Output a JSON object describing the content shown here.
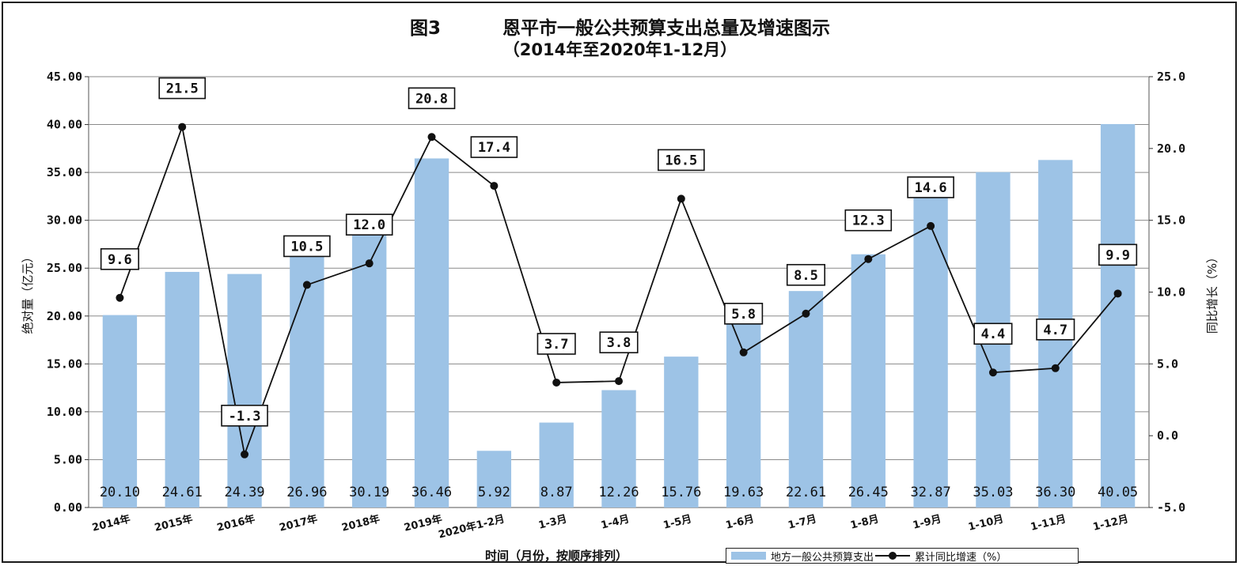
{
  "chart_data": {
    "type": "bar+line",
    "title": "图3　　恩平市一般公共预算支出总量及增速图示",
    "title_fig": "图3",
    "title_main": "恩平市一般公共预算支出总量及增速图示",
    "subtitle": "（2014年至2020年1-12月）",
    "xlabel": "时间（月份，按顺序排列）",
    "ylabel": "绝对量（亿元）",
    "ylabel_right": "同比增长（%）",
    "ylim": [
      0,
      45
    ],
    "ylim_right": [
      -5,
      25
    ],
    "yticks": [
      "0.00",
      "5.00",
      "10.00",
      "15.00",
      "20.00",
      "25.00",
      "30.00",
      "35.00",
      "40.00",
      "45.00"
    ],
    "yticks_right": [
      "-5.0",
      "0.0",
      "5.0",
      "10.0",
      "15.0",
      "20.0",
      "25.0"
    ],
    "categories": [
      "2014年",
      "2015年",
      "2016年",
      "2017年",
      "2018年",
      "2019年",
      "2020年1-2月",
      "1-3月",
      "1-4月",
      "1-5月",
      "1-6月",
      "1-7月",
      "1-8月",
      "1-9月",
      "1-10月",
      "1-11月",
      "1-12月"
    ],
    "series": [
      {
        "name": "地方一般公共预算支出",
        "type": "bar",
        "axis": "left",
        "color": "#9dc3e6",
        "values": [
          20.1,
          24.61,
          24.39,
          26.96,
          30.19,
          36.46,
          5.92,
          8.87,
          12.26,
          15.76,
          19.63,
          22.61,
          26.45,
          32.87,
          35.03,
          36.3,
          40.05
        ],
        "labels": [
          "20.10",
          "24.61",
          "24.39",
          "26.96",
          "30.19",
          "36.46",
          "5.92",
          "8.87",
          "12.26",
          "15.76",
          "19.63",
          "22.61",
          "26.45",
          "32.87",
          "35.03",
          "36.30",
          "40.05"
        ]
      },
      {
        "name": "累计同比增速（%）",
        "type": "line",
        "axis": "right",
        "color": "#111111",
        "values": [
          9.6,
          21.5,
          -1.3,
          10.5,
          12.0,
          20.8,
          17.4,
          3.7,
          3.8,
          16.5,
          5.8,
          8.5,
          12.3,
          14.6,
          4.4,
          4.7,
          9.9
        ],
        "labels": [
          "9.6",
          "21.5",
          "-1.3",
          "10.5",
          "12.0",
          "20.8",
          "17.4",
          "3.7",
          "3.8",
          "16.5",
          "5.8",
          "8.5",
          "12.3",
          "14.6",
          "4.4",
          "4.7",
          "9.9"
        ]
      }
    ],
    "grid": true,
    "legend": "bottom-right"
  }
}
